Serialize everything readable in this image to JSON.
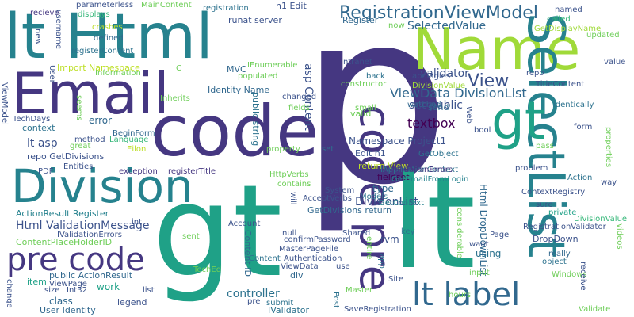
{
  "palette": {
    "purple-dark": "#440154",
    "indigo": "#3b528b",
    "navy": "#453781",
    "blue": "#31688e",
    "teal": "#26828e",
    "teal-dark": "#2c728e",
    "green": "#1fa187",
    "green-mid": "#35b779",
    "green-light": "#6ece58",
    "lime": "#a0da39",
    "yellow": "#bddf26"
  },
  "words": [
    {
      "text": "p",
      "color": "navy"
    },
    {
      "text": "gt",
      "color": "green"
    },
    {
      "text": "lt",
      "color": "green"
    },
    {
      "text": "lt Html",
      "color": "teal"
    },
    {
      "text": "code",
      "color": "navy"
    },
    {
      "text": "Email",
      "color": "navy"
    },
    {
      "text": "Name",
      "color": "lime"
    },
    {
      "text": "Division",
      "color": "teal"
    },
    {
      "text": "SelectList",
      "color": "teal"
    },
    {
      "text": "gt",
      "color": "green"
    },
    {
      "text": "code pre",
      "color": "navy"
    },
    {
      "text": "pre code",
      "color": "navy"
    },
    {
      "text": "lt label",
      "color": "blue"
    },
    {
      "text": "RegistrationViewModel",
      "color": "blue"
    },
    {
      "text": "View",
      "color": "indigo"
    },
    {
      "text": "ViewData DivisionList",
      "color": "blue"
    },
    {
      "text": "SelectedValue",
      "color": "blue"
    },
    {
      "text": "validator",
      "color": "indigo"
    },
    {
      "text": "textbox",
      "color": "purple-dark"
    },
    {
      "text": "set public",
      "color": "indigo"
    },
    {
      "text": "asp Content",
      "color": "indigo"
    },
    {
      "text": "Namespace Project1",
      "color": "indigo"
    },
    {
      "text": "DivisionList",
      "color": "indigo"
    },
    {
      "text": "GetDivisions return",
      "color": "blue"
    },
    {
      "text": "Html DropDownList",
      "color": "blue"
    },
    {
      "text": "Html ValidationMessage",
      "color": "indigo"
    },
    {
      "text": "ActionResult Register",
      "color": "teal"
    },
    {
      "text": "ContentPlaceHolderID",
      "color": "green-light"
    },
    {
      "text": "controller",
      "color": "teal-dark"
    },
    {
      "text": "Content ID",
      "color": "blue"
    },
    {
      "text": "lt asp",
      "color": "indigo"
    },
    {
      "text": "repo GetDivisions",
      "color": "indigo"
    },
    {
      "text": "Register",
      "color": "blue"
    },
    {
      "text": "error",
      "color": "blue"
    },
    {
      "text": "Import Namespace",
      "color": "yellow"
    },
    {
      "text": "fieldset",
      "color": "purple-dark"
    },
    {
      "text": "Edit h1",
      "color": "indigo"
    },
    {
      "text": "return View",
      "color": "yellow"
    },
    {
      "text": "type",
      "color": "blue"
    },
    {
      "text": "rvm",
      "color": "indigo"
    },
    {
      "text": "using",
      "color": "teal-dark"
    },
    {
      "text": "DropDown",
      "color": "indigo"
    },
    {
      "text": "work",
      "color": "green"
    },
    {
      "text": "class",
      "color": "blue"
    },
    {
      "text": "legend",
      "color": "indigo"
    },
    {
      "text": "public ActionResult",
      "color": "blue"
    },
    {
      "text": "User Identity",
      "color": "blue"
    },
    {
      "text": "IValidator",
      "color": "teal-dark"
    },
    {
      "text": "item",
      "color": "green"
    },
    {
      "text": "context",
      "color": "teal-dark"
    },
    {
      "text": "Identity Name",
      "color": "blue"
    },
    {
      "text": "valid",
      "color": "green-light"
    },
    {
      "text": "div",
      "color": "blue"
    },
    {
      "text": "public string",
      "color": "teal-dark"
    },
    {
      "text": "MVC",
      "color": "blue"
    },
    {
      "text": "runat server",
      "color": "indigo"
    },
    {
      "text": "h1 Edit",
      "color": "indigo"
    },
    {
      "text": "send",
      "color": "blue"
    },
    {
      "text": "exception",
      "color": "navy"
    },
    {
      "text": "registerTitle",
      "color": "navy"
    },
    {
      "text": "BeginForm",
      "color": "blue"
    },
    {
      "text": "Eilon",
      "color": "yellow"
    },
    {
      "text": "Int32",
      "color": "indigo"
    },
    {
      "text": "ViewPage",
      "color": "indigo"
    },
    {
      "text": "MainContent",
      "color": "green-light"
    },
    {
      "text": "parameterless",
      "color": "indigo"
    },
    {
      "text": "recieve",
      "color": "navy"
    },
    {
      "text": "displays",
      "color": "green-mid"
    },
    {
      "text": "crashes",
      "color": "yellow"
    },
    {
      "text": "defined",
      "color": "blue"
    },
    {
      "text": "registerContent",
      "color": "teal-dark"
    },
    {
      "text": "registration",
      "color": "teal-dark"
    },
    {
      "text": "called",
      "color": "green-mid"
    },
    {
      "text": "GetDisplayName",
      "color": "lime"
    },
    {
      "text": "named",
      "color": "indigo"
    },
    {
      "text": "updated",
      "color": "green-light"
    },
    {
      "text": "value",
      "color": "indigo"
    },
    {
      "text": "Intranet",
      "color": "indigo"
    },
    {
      "text": "back",
      "color": "teal-dark"
    },
    {
      "text": "constructor",
      "color": "green-light"
    },
    {
      "text": "apologies",
      "color": "indigo"
    },
    {
      "text": "DivisionValue",
      "color": "lime"
    },
    {
      "text": "repo",
      "color": "indigo"
    },
    {
      "text": "TitleContent",
      "color": "indigo"
    },
    {
      "text": "small",
      "color": "green-light"
    },
    {
      "text": "watched",
      "color": "blue"
    },
    {
      "text": "identically",
      "color": "teal-dark"
    },
    {
      "text": "Language",
      "color": "green-mid"
    },
    {
      "text": "method",
      "color": "indigo"
    },
    {
      "text": "great",
      "color": "green-light"
    },
    {
      "text": "Entities",
      "color": "indigo"
    },
    {
      "text": "property",
      "color": "green-light"
    },
    {
      "text": "GetObject",
      "color": "teal-dark"
    },
    {
      "text": "IApplicationContext",
      "color": "teal-dark"
    },
    {
      "text": "problem",
      "color": "indigo"
    },
    {
      "text": "ContextRegistry",
      "color": "indigo"
    },
    {
      "text": "pass",
      "color": "green-light"
    },
    {
      "text": "form",
      "color": "indigo"
    },
    {
      "text": "HttpVerbs",
      "color": "green-light"
    },
    {
      "text": "contains",
      "color": "green-light"
    },
    {
      "text": "AcceptVerbs",
      "color": "indigo"
    },
    {
      "text": "System",
      "color": "indigo"
    },
    {
      "text": "GetContext",
      "color": "teal"
    },
    {
      "text": "GetEmailFromLogin",
      "color": "teal"
    },
    {
      "text": "Models",
      "color": "teal-dark"
    },
    {
      "text": "sure",
      "color": "indigo"
    },
    {
      "text": "private",
      "color": "green"
    },
    {
      "text": "DivisionValue",
      "color": "green-mid"
    },
    {
      "text": "RegistrationValidator",
      "color": "indigo"
    },
    {
      "text": "really",
      "color": "blue"
    },
    {
      "text": "object",
      "color": "teal-dark"
    },
    {
      "text": "Windows",
      "color": "green-light"
    },
    {
      "text": "Page",
      "color": "indigo"
    },
    {
      "text": "null",
      "color": "indigo"
    },
    {
      "text": "confirmPassword",
      "color": "indigo"
    },
    {
      "text": "Shared",
      "color": "indigo"
    },
    {
      "text": "MasterPageFile",
      "color": "indigo"
    },
    {
      "text": "Authentication",
      "color": "indigo"
    },
    {
      "text": "ViewData",
      "color": "indigo"
    },
    {
      "text": "use",
      "color": "indigo"
    },
    {
      "text": "Site",
      "color": "indigo"
    },
    {
      "text": "Master",
      "color": "green-light"
    },
    {
      "text": "submit",
      "color": "teal-dark"
    },
    {
      "text": "SaveRegistration",
      "color": "indigo"
    },
    {
      "text": "ValidationErrors",
      "color": "navy"
    },
    {
      "text": "IValidationErrors",
      "color": "indigo"
    },
    {
      "text": "TechEd",
      "color": "green-light"
    },
    {
      "text": "TechDays",
      "color": "indigo"
    },
    {
      "text": "Information",
      "color": "green-light"
    },
    {
      "text": "IEnumerable",
      "color": "green-light"
    },
    {
      "text": "populated",
      "color": "green-light"
    },
    {
      "text": "changed",
      "color": "indigo"
    },
    {
      "text": "fields",
      "color": "green-light"
    },
    {
      "text": "Inherits",
      "color": "green-light"
    },
    {
      "text": "seems",
      "color": "green-light"
    },
    {
      "text": "username",
      "color": "indigo"
    },
    {
      "text": "User",
      "color": "indigo"
    },
    {
      "text": "new",
      "color": "indigo"
    },
    {
      "text": "PDF",
      "color": "indigo"
    },
    {
      "text": "change",
      "color": "indigo"
    },
    {
      "text": "size",
      "color": "indigo"
    },
    {
      "text": "list",
      "color": "indigo"
    },
    {
      "text": "pre",
      "color": "indigo"
    },
    {
      "text": "Account",
      "color": "indigo"
    },
    {
      "text": "int",
      "color": "indigo"
    },
    {
      "text": "sent",
      "color": "green-light"
    },
    {
      "text": "will",
      "color": "indigo"
    },
    {
      "text": "key",
      "color": "teal-dark"
    },
    {
      "text": "want",
      "color": "indigo"
    },
    {
      "text": "considerable",
      "color": "green-light"
    },
    {
      "text": "entire",
      "color": "green-light"
    },
    {
      "text": "app",
      "color": "teal-dark"
    },
    {
      "text": "input",
      "color": "green-light"
    },
    {
      "text": "hours",
      "color": "green-light"
    },
    {
      "text": "receive",
      "color": "indigo"
    },
    {
      "text": "Validate",
      "color": "green-light"
    },
    {
      "text": "way",
      "color": "indigo"
    },
    {
      "text": "Action",
      "color": "teal-dark"
    },
    {
      "text": "videos",
      "color": "green-light"
    },
    {
      "text": "properties",
      "color": "green-light"
    },
    {
      "text": "bool",
      "color": "indigo"
    },
    {
      "text": "Web",
      "color": "indigo"
    },
    {
      "text": "C",
      "color": "green-light"
    },
    {
      "text": "now",
      "color": "green-light"
    },
    {
      "text": "ViewModel",
      "color": "indigo"
    },
    {
      "text": "Post",
      "color": "teal-dark"
    },
    {
      "text": "Content",
      "color": "teal-dark"
    },
    {
      "text": "set",
      "color": "teal-dark"
    }
  ]
}
